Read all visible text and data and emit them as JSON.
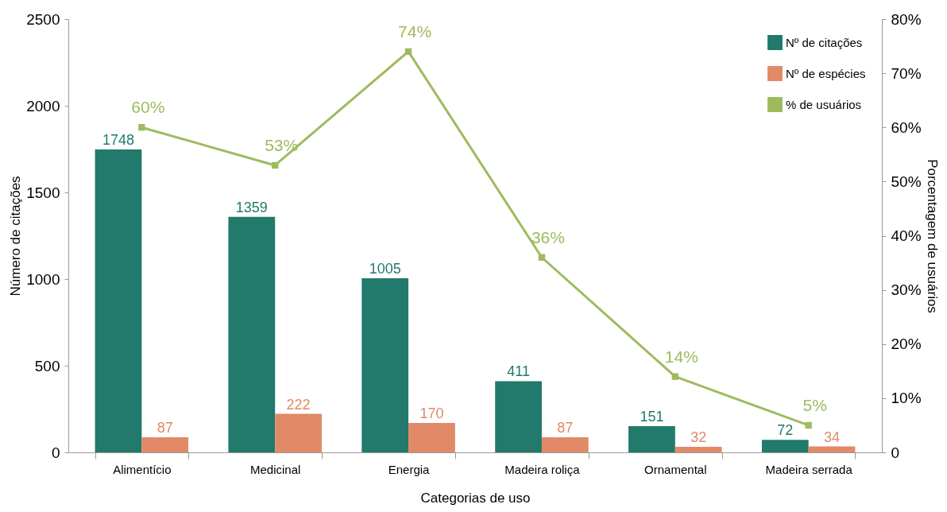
{
  "chart_data": {
    "type": "bar",
    "xlabel": "Categorias de uso",
    "ylabel": "Número de citações",
    "y2label": "Porcentagem de usuários",
    "categories": [
      "Alimentício",
      "Medicinal",
      "Energia",
      "Madeira roliça",
      "Ornamental",
      "Madeira serrada"
    ],
    "series": [
      {
        "name": "Nº de citações",
        "color": "#217a6b",
        "values": [
          1748,
          1359,
          1005,
          411,
          151,
          72
        ]
      },
      {
        "name": "Nº de espécies",
        "color": "#e08a68",
        "values": [
          87,
          222,
          170,
          87,
          32,
          34
        ]
      },
      {
        "name": "% de usuários",
        "color": "#9dbb5e",
        "type": "line",
        "axis": "y2",
        "marker": "square",
        "values": [
          60,
          53,
          74,
          36,
          14,
          5
        ],
        "value_labels": [
          "60%",
          "53%",
          "74%",
          "36%",
          "14%",
          "5%"
        ]
      }
    ],
    "ylim": [
      0,
      2500
    ],
    "yticks": [
      0,
      500,
      1000,
      1500,
      2000,
      2500
    ],
    "y2lim": [
      0,
      80
    ],
    "y2ticks": [
      0,
      {
        "value": 10,
        "label": "10%"
      },
      {
        "value": 20,
        "label": "20%"
      },
      {
        "value": 30,
        "label": "30%"
      },
      {
        "value": 40,
        "label": "40%"
      },
      {
        "value": 50,
        "label": "50%"
      },
      {
        "value": 60,
        "label": "60%"
      },
      {
        "value": 70,
        "label": "70%"
      },
      {
        "value": 80,
        "label": "80%"
      }
    ],
    "data_labels": true,
    "grid": false,
    "legend": "top right",
    "line_style": "solid"
  }
}
